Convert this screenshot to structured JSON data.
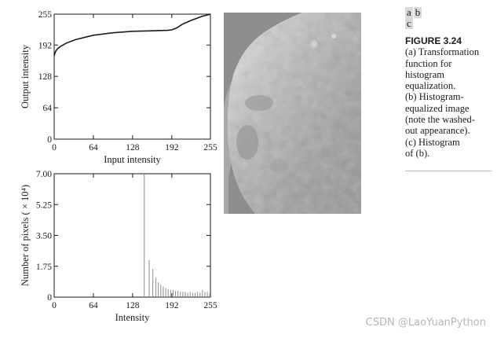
{
  "panel_labels": {
    "a": "a",
    "b": "b",
    "c": "c"
  },
  "caption": {
    "title": "FIGURE 3.24",
    "lines": [
      "(a) Transformation",
      "function for",
      "histogram",
      "equalization.",
      "(b) Histogram-",
      "equalized image",
      "(note the washed-",
      "out appearance).",
      "(c) Histogram",
      "of (b)."
    ]
  },
  "watermark": "CSDN @LaoYuanPython",
  "chart_data": [
    {
      "type": "line",
      "xlabel": "Input intensity",
      "ylabel": "Output intensity",
      "xlim": [
        0,
        255
      ],
      "ylim": [
        0,
        255
      ],
      "xticks": [
        "0",
        "64",
        "128",
        "192",
        "255"
      ],
      "yticks": [
        "0",
        "64",
        "128",
        "192",
        "255"
      ],
      "series": [
        {
          "x": [
            0,
            2,
            5,
            10,
            20,
            35,
            64,
            96,
            128,
            160,
            185,
            192,
            200,
            210,
            225,
            240,
            255
          ],
          "y": [
            170,
            178,
            184,
            189,
            196,
            203,
            212,
            217,
            220,
            221,
            222,
            223,
            227,
            235,
            243,
            250,
            255
          ]
        }
      ]
    },
    {
      "type": "bar",
      "xlabel": "Intensity",
      "ylabel": "Number of pixels ( × 10⁴)",
      "xlim": [
        0,
        255
      ],
      "ylim": [
        0,
        7.0
      ],
      "xticks": [
        "0",
        "64",
        "128",
        "192",
        "255"
      ],
      "yticks": [
        "0",
        "1.75",
        "3.50",
        "5.25",
        "7.00"
      ],
      "bars": {
        "x": [
          147,
          155,
          161,
          166,
          170,
          174,
          178,
          182,
          186,
          190,
          194,
          198,
          202,
          206,
          210,
          214,
          218,
          222,
          226,
          230,
          234,
          238,
          242,
          246,
          250,
          254
        ],
        "values": [
          7.0,
          2.1,
          1.6,
          1.1,
          0.85,
          0.7,
          0.6,
          0.5,
          0.45,
          0.4,
          0.4,
          0.35,
          0.35,
          0.3,
          0.3,
          0.3,
          0.25,
          0.3,
          0.25,
          0.25,
          0.3,
          0.25,
          0.4,
          0.3,
          0.3,
          0.2
        ]
      }
    }
  ]
}
